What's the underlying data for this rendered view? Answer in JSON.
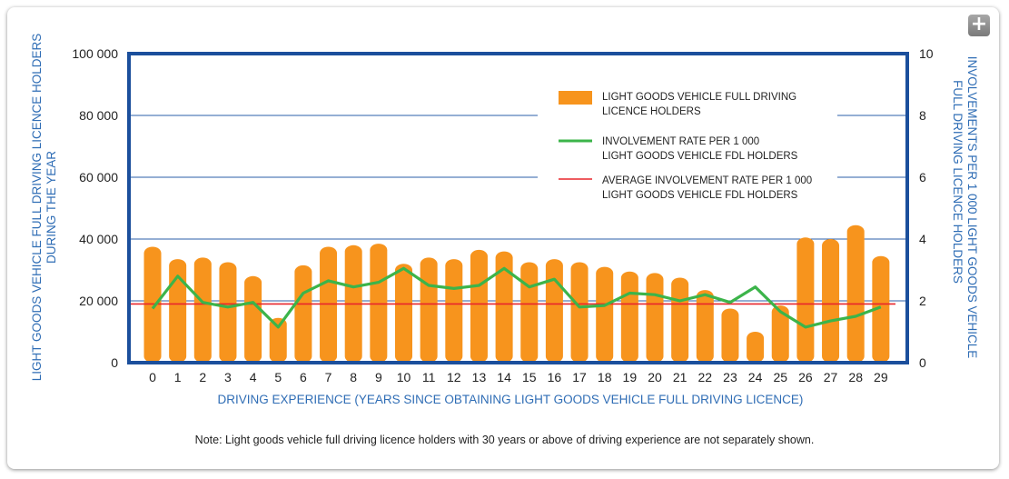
{
  "chart_data": {
    "type": "bar",
    "title": "",
    "xlabel": "DRIVING EXPERIENCE (YEARS SINCE OBTAINING LIGHT GOODS VEHICLE FULL DRIVING LICENCE)",
    "ylabel_left": "LIGHT GOODS VEHICLE FULL DRIVING LICENCE HOLDERS DURING THE YEAR",
    "ylabel_right": "INVOLVEMENTS PER 1 000 LIGHT GOODS VEHICLE FULL DRIVING LICENCE  HOLDERS",
    "ylim_left": [
      0,
      100000
    ],
    "ylim_right": [
      0,
      10
    ],
    "yticks_left": [
      "0",
      "20 000",
      "40 000",
      "60 000",
      "80 000",
      "100 000"
    ],
    "yticks_right": [
      "0",
      "2",
      "4",
      "6",
      "8",
      "10"
    ],
    "categories": [
      "0",
      "1",
      "2",
      "3",
      "4",
      "5",
      "6",
      "7",
      "8",
      "9",
      "10",
      "11",
      "12",
      "13",
      "14",
      "15",
      "16",
      "17",
      "18",
      "19",
      "20",
      "21",
      "22",
      "23",
      "24",
      "25",
      "26",
      "27",
      "28",
      "29"
    ],
    "grid": true,
    "legend_position": "top-right",
    "series": [
      {
        "name": "LIGHT GOODS VEHICLE FULL DRIVING LICENCE HOLDERS",
        "type": "bar",
        "axis": "left",
        "color": "#f7941d",
        "values": [
          37500,
          33500,
          34000,
          32500,
          28000,
          14500,
          31500,
          37500,
          38000,
          38500,
          32000,
          34000,
          33500,
          36500,
          36000,
          32500,
          33500,
          32500,
          31000,
          29500,
          29000,
          27500,
          23500,
          17500,
          10000,
          18500,
          40500,
          40000,
          44500,
          34500
        ]
      },
      {
        "name": "INVOLVEMENT RATE PER 1 000 LIGHT GOODS VEHICLE FDL HOLDERS",
        "type": "line",
        "axis": "right",
        "color": "#3cb44a",
        "values": [
          1.75,
          2.8,
          1.95,
          1.8,
          1.95,
          1.15,
          2.25,
          2.65,
          2.45,
          2.6,
          3.05,
          2.5,
          2.4,
          2.5,
          3.05,
          2.45,
          2.7,
          1.8,
          1.85,
          2.25,
          2.2,
          2.0,
          2.2,
          1.95,
          2.45,
          1.65,
          1.15,
          1.35,
          1.5,
          1.8
        ]
      },
      {
        "name": "AVERAGE INVOLVEMENT RATE PER 1 000 LIGHT GOODS VEHICLE FDL HOLDERS",
        "type": "line",
        "axis": "right",
        "color": "#e8262c",
        "value": 1.9
      }
    ],
    "legend_lines": [
      [
        "LIGHT GOODS VEHICLE FULL DRIVING",
        "LICENCE HOLDERS"
      ],
      [
        "INVOLVEMENT RATE PER 1 000",
        "LIGHT GOODS VEHICLE FDL HOLDERS"
      ],
      [
        "AVERAGE INVOLVEMENT RATE PER 1 000",
        "LIGHT GOODS VEHICLE FDL HOLDERS"
      ]
    ],
    "ylabel_left_lines": [
      "LIGHT GOODS VEHICLE FULL DRIVING LICENCE HOLDERS",
      "DURING THE YEAR"
    ],
    "ylabel_right_lines": [
      "INVOLVEMENTS PER 1 000 LIGHT GOODS VEHICLE",
      "FULL DRIVING LICENCE  HOLDERS"
    ],
    "note": "Note: Light goods vehicle full driving licence holders with 30 years or above of driving experience are not separately shown.",
    "colors": {
      "axis_frame": "#1b4f9c",
      "gridline": "#2b5fa8",
      "label_blue": "#2f6db5",
      "text": "#222222"
    }
  },
  "controls": {
    "expand_icon": "plus-icon",
    "expand_label": "+"
  }
}
